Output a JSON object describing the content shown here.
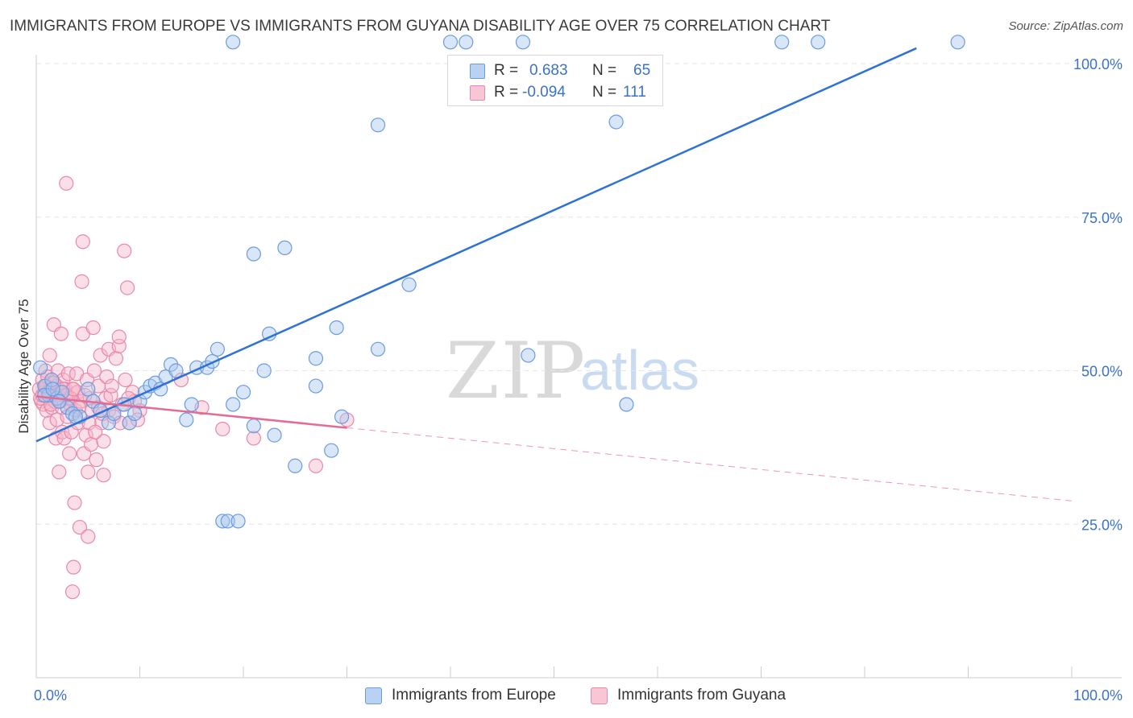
{
  "title": "IMMIGRANTS FROM EUROPE VS IMMIGRANTS FROM GUYANA DISABILITY AGE OVER 75 CORRELATION CHART",
  "source": "Source: ZipAtlas.com",
  "watermark": {
    "zip": "ZIP",
    "atlas": "atlas"
  },
  "legend_top": {
    "rows": [
      {
        "r_label": "R =",
        "r_value": "0.683",
        "n_label": "N =",
        "n_value": "65"
      },
      {
        "r_label": "R =",
        "r_value": "-0.094",
        "n_label": "N =",
        "n_value": "111"
      }
    ]
  },
  "legend_bottom": {
    "europe": "Immigrants from Europe",
    "guyana": "Immigrants from Guyana"
  },
  "colors": {
    "europe_fill": "#a9c8f0",
    "europe_stroke": "#6b9be0",
    "europe_line": "#2f72d6",
    "guyana_fill": "#f7b8cc",
    "guyana_stroke": "#e889a8",
    "guyana_line": "#e46b96",
    "tick_text": "#3b72c9",
    "grid": "#e6e6e6"
  },
  "chart_data": {
    "type": "scatter",
    "title": "IMMIGRANTS FROM EUROPE VS IMMIGRANTS FROM GUYANA DISABILITY AGE OVER 75 CORRELATION CHART",
    "xlabel": "",
    "ylabel": "Disability Age Over 75",
    "xlim": [
      0,
      100
    ],
    "ylim": [
      0,
      105
    ],
    "x_tick_labels": [
      "0.0%",
      "100.0%"
    ],
    "y_ticks": [
      25,
      50,
      75,
      100
    ],
    "y_tick_labels": [
      "25.0%",
      "50.0%",
      "75.0%",
      "100.0%"
    ],
    "series": [
      {
        "name": "Immigrants from Europe",
        "r": 0.683,
        "n": 65,
        "trend": {
          "x0": 0,
          "y0": 38.5,
          "x1": 85,
          "y1": 102.5,
          "solid_to": 85
        },
        "points": [
          [
            0.4,
            50.5
          ],
          [
            0.8,
            47.5
          ],
          [
            1.2,
            46.0
          ],
          [
            1.5,
            48.5
          ],
          [
            2.0,
            45.5
          ],
          [
            2.5,
            46.5
          ],
          [
            3.0,
            44.0
          ],
          [
            3.5,
            43.0
          ],
          [
            4.2,
            42.5
          ],
          [
            5.0,
            47.0
          ],
          [
            5.5,
            45.0
          ],
          [
            6.2,
            43.5
          ],
          [
            7.0,
            41.5
          ],
          [
            7.5,
            43.0
          ],
          [
            8.5,
            44.5
          ],
          [
            9.0,
            41.5
          ],
          [
            9.5,
            43.0
          ],
          [
            10.0,
            45.0
          ],
          [
            10.5,
            46.5
          ],
          [
            11.0,
            47.5
          ],
          [
            11.5,
            48.0
          ],
          [
            12.0,
            47.0
          ],
          [
            12.5,
            49.0
          ],
          [
            13.0,
            51.0
          ],
          [
            13.5,
            50.0
          ],
          [
            14.5,
            42.0
          ],
          [
            15.0,
            44.5
          ],
          [
            15.5,
            50.5
          ],
          [
            16.5,
            50.5
          ],
          [
            17.0,
            51.5
          ],
          [
            17.5,
            53.5
          ],
          [
            18.0,
            25.5
          ],
          [
            18.5,
            25.5
          ],
          [
            19.0,
            44.5
          ],
          [
            19.5,
            25.5
          ],
          [
            20.0,
            46.5
          ],
          [
            21.0,
            69.0
          ],
          [
            21.0,
            41.0
          ],
          [
            22.0,
            50.0
          ],
          [
            22.5,
            56.0
          ],
          [
            23.0,
            39.5
          ],
          [
            24.0,
            70.0
          ],
          [
            25.0,
            34.5
          ],
          [
            27.0,
            52.0
          ],
          [
            27.0,
            47.5
          ],
          [
            28.5,
            37.0
          ],
          [
            29.5,
            42.5
          ],
          [
            29.0,
            57.0
          ],
          [
            33.0,
            53.5
          ],
          [
            33.0,
            90.0
          ],
          [
            36.0,
            64.0
          ],
          [
            40.0,
            103.5
          ],
          [
            41.5,
            103.5
          ],
          [
            47.0,
            103.5
          ],
          [
            47.5,
            52.5
          ],
          [
            56.0,
            90.5
          ],
          [
            57.0,
            44.5
          ],
          [
            72.0,
            103.5
          ],
          [
            75.5,
            103.5
          ],
          [
            89.0,
            103.5
          ],
          [
            19.0,
            103.5
          ],
          [
            0.8,
            46.0
          ],
          [
            1.6,
            47.0
          ],
          [
            2.2,
            45.0
          ],
          [
            3.8,
            42.5
          ]
        ]
      },
      {
        "name": "Immigrants from Guyana",
        "r": -0.094,
        "n": 111,
        "trend": {
          "x0": 0,
          "y0": 45.8,
          "x1": 100,
          "y1": 28.8,
          "solid_to": 30
        },
        "points": [
          [
            0.3,
            47.0
          ],
          [
            0.5,
            45.0
          ],
          [
            0.6,
            48.5
          ],
          [
            0.7,
            44.5
          ],
          [
            0.8,
            46.5
          ],
          [
            0.9,
            50.0
          ],
          [
            1.0,
            47.5
          ],
          [
            1.0,
            43.5
          ],
          [
            1.1,
            49.0
          ],
          [
            1.2,
            45.5
          ],
          [
            1.3,
            52.5
          ],
          [
            1.3,
            41.5
          ],
          [
            1.4,
            47.0
          ],
          [
            1.5,
            46.0
          ],
          [
            1.5,
            44.0
          ],
          [
            1.6,
            48.0
          ],
          [
            1.7,
            57.5
          ],
          [
            1.8,
            45.0
          ],
          [
            1.9,
            39.0
          ],
          [
            2.0,
            47.5
          ],
          [
            2.0,
            42.0
          ],
          [
            2.1,
            50.0
          ],
          [
            2.2,
            33.5
          ],
          [
            2.3,
            46.5
          ],
          [
            2.4,
            56.0
          ],
          [
            2.5,
            44.0
          ],
          [
            2.5,
            40.0
          ],
          [
            2.6,
            48.5
          ],
          [
            2.7,
            39.0
          ],
          [
            2.8,
            47.0
          ],
          [
            2.9,
            80.5
          ],
          [
            3.0,
            45.5
          ],
          [
            3.0,
            42.5
          ],
          [
            3.1,
            49.5
          ],
          [
            3.2,
            36.5
          ],
          [
            3.3,
            44.5
          ],
          [
            3.4,
            40.0
          ],
          [
            3.5,
            47.0
          ],
          [
            3.5,
            14.0
          ],
          [
            3.6,
            18.0
          ],
          [
            3.7,
            28.5
          ],
          [
            3.8,
            43.5
          ],
          [
            3.9,
            49.5
          ],
          [
            4.0,
            46.5
          ],
          [
            4.0,
            41.5
          ],
          [
            4.2,
            24.5
          ],
          [
            4.3,
            45.0
          ],
          [
            4.4,
            64.5
          ],
          [
            4.5,
            71.0
          ],
          [
            4.5,
            56.0
          ],
          [
            4.6,
            36.5
          ],
          [
            4.8,
            39.5
          ],
          [
            4.9,
            48.5
          ],
          [
            5.0,
            33.5
          ],
          [
            5.0,
            23.0
          ],
          [
            5.2,
            45.5
          ],
          [
            5.3,
            38.0
          ],
          [
            5.4,
            43.5
          ],
          [
            5.5,
            57.0
          ],
          [
            5.6,
            50.0
          ],
          [
            5.8,
            35.5
          ],
          [
            6.0,
            47.5
          ],
          [
            6.0,
            44.0
          ],
          [
            6.2,
            52.5
          ],
          [
            6.3,
            41.5
          ],
          [
            6.5,
            38.5
          ],
          [
            6.5,
            33.0
          ],
          [
            6.7,
            45.5
          ],
          [
            6.8,
            49.0
          ],
          [
            7.0,
            53.5
          ],
          [
            7.0,
            43.5
          ],
          [
            7.2,
            46.0
          ],
          [
            7.5,
            42.5
          ],
          [
            7.7,
            52.0
          ],
          [
            8.0,
            54.0
          ],
          [
            8.0,
            55.5
          ],
          [
            8.3,
            44.5
          ],
          [
            8.5,
            69.5
          ],
          [
            8.6,
            48.5
          ],
          [
            8.8,
            63.5
          ],
          [
            9.0,
            41.5
          ],
          [
            9.3,
            46.5
          ],
          [
            9.5,
            45.0
          ],
          [
            10.0,
            43.5
          ],
          [
            14.0,
            48.5
          ],
          [
            16.0,
            44.0
          ],
          [
            18.0,
            40.5
          ],
          [
            21.0,
            39.0
          ],
          [
            27.0,
            34.5
          ],
          [
            30.0,
            42.0
          ],
          [
            0.4,
            45.5
          ],
          [
            0.6,
            46.0
          ],
          [
            0.9,
            47.5
          ],
          [
            1.2,
            46.5
          ],
          [
            1.4,
            44.5
          ],
          [
            1.7,
            48.0
          ],
          [
            2.0,
            46.0
          ],
          [
            2.3,
            45.0
          ],
          [
            2.6,
            47.0
          ],
          [
            2.9,
            46.0
          ],
          [
            3.3,
            45.5
          ],
          [
            3.6,
            47.0
          ],
          [
            4.1,
            44.0
          ],
          [
            4.7,
            46.0
          ],
          [
            5.1,
            41.5
          ],
          [
            5.7,
            40.0
          ],
          [
            6.4,
            43.0
          ],
          [
            7.3,
            47.5
          ],
          [
            8.1,
            41.5
          ],
          [
            8.9,
            45.5
          ],
          [
            9.8,
            42.0
          ]
        ]
      }
    ]
  }
}
